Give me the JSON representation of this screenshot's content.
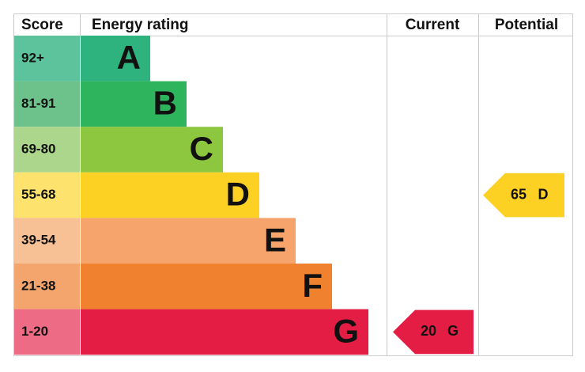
{
  "header": {
    "score": "Score",
    "rating": "Energy rating",
    "current": "Current",
    "potential": "Potential"
  },
  "bands": [
    {
      "score": "92+",
      "letter": "A",
      "color": "#2eb37f",
      "light": "#5cc39c"
    },
    {
      "score": "81-91",
      "letter": "B",
      "color": "#2db45d",
      "light": "#6cc28a"
    },
    {
      "score": "69-80",
      "letter": "C",
      "color": "#8dc63f",
      "light": "#acd68b"
    },
    {
      "score": "55-68",
      "letter": "D",
      "color": "#fdd123",
      "light": "#fde36d"
    },
    {
      "score": "39-54",
      "letter": "E",
      "color": "#f6a46b",
      "light": "#f8c095"
    },
    {
      "score": "21-38",
      "letter": "F",
      "color": "#f0822f",
      "light": "#f4a46d"
    },
    {
      "score": "1-20",
      "letter": "G",
      "color": "#e31d44",
      "light": "#ed6b84"
    }
  ],
  "current": {
    "score": 20,
    "rating": "G"
  },
  "potential": {
    "score": 65,
    "rating": "D"
  }
}
